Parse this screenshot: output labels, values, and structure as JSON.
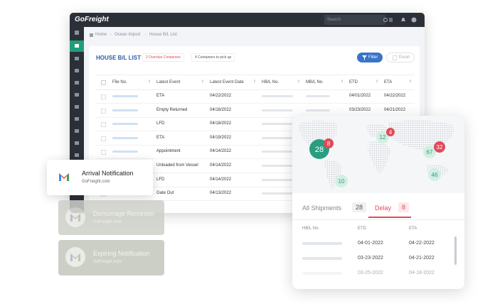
{
  "app": {
    "logo": "GoFreight",
    "search": "Search"
  },
  "breadcrumb": [
    "Home",
    "Ocean Import",
    "House B/L List"
  ],
  "list": {
    "title": "HOUSE B/L LIST",
    "badges": [
      "2 Overdue Containers",
      "4 Containers to pick up"
    ],
    "buttons": [
      "Filter",
      "Excel"
    ],
    "columns": [
      "File No.",
      "Latest Event",
      "Latest Event Date",
      "HB/L No.",
      "MB/L No.",
      "ETD",
      "ETA"
    ],
    "rows": [
      {
        "event": "ETA",
        "date": "04/22/2022",
        "etd": "04/01/2022",
        "eta": "04/22/2022"
      },
      {
        "event": "Empty Returned",
        "date": "04/18/2022",
        "etd": "03/23/2022",
        "eta": "04/21/2022"
      },
      {
        "event": "LFD",
        "date": "04/18/2022"
      },
      {
        "event": "ETA",
        "date": "04/19/2022"
      },
      {
        "event": "Appointment",
        "date": "04/14/2022"
      },
      {
        "event": "Unloaded from Vessel",
        "date": "04/14/2022"
      },
      {
        "event": "LFD",
        "date": "04/14/2022"
      },
      {
        "event": "Gate Out",
        "date": "04/13/2022"
      }
    ]
  },
  "notifications": [
    {
      "title": "Arrival Notification",
      "sender": "GoFreight.com"
    },
    {
      "title": "Demurrage Reminder",
      "sender": "GoFreight.com"
    },
    {
      "title": "Expiring Notification",
      "sender": "GoFreight.com"
    }
  ],
  "map": {
    "clusters": [
      {
        "count": 28,
        "color": "#2a9d80"
      },
      {
        "count": 8,
        "color": "#e04a5a"
      },
      {
        "count": 12,
        "color": "#d3efe2"
      },
      {
        "count": 4,
        "color": "#e04a5a"
      },
      {
        "count": 67,
        "color": "#d3efe2"
      },
      {
        "count": 32,
        "color": "#e04a5a"
      },
      {
        "count": 10,
        "color": "#d3efe2"
      },
      {
        "count": 46,
        "color": "#d3efe2"
      }
    ]
  },
  "shipments": {
    "tabs": [
      {
        "label": "All Shipments",
        "count": 28
      },
      {
        "label": "Delay",
        "count": 8
      }
    ],
    "columns": [
      "HB/L No.",
      "ETD",
      "ETA"
    ],
    "rows": [
      {
        "etd": "04-01-2022",
        "eta": "04-22-2022"
      },
      {
        "etd": "03-23-2022",
        "eta": "04-21-2022"
      },
      {
        "etd": "03-25-2022",
        "eta": "04-18-2022"
      }
    ]
  }
}
